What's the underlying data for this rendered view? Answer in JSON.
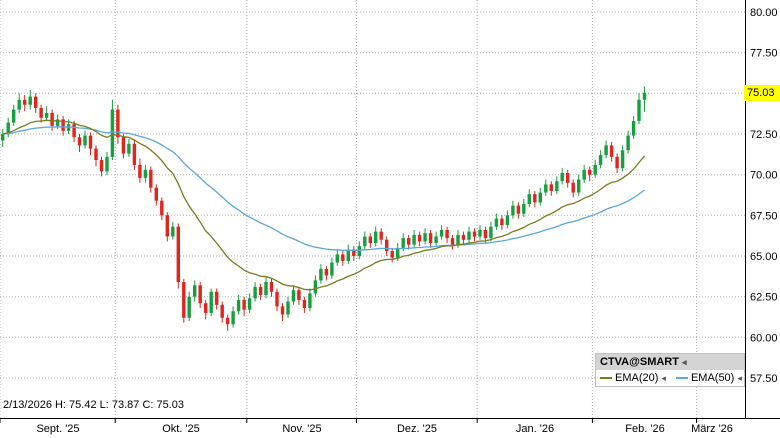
{
  "status": {
    "text": "2/13/2026 H: 75.42 L: 73.87 C: 75.03"
  },
  "legend": {
    "title": "CTVA@SMART",
    "ema20_label": "EMA(20)",
    "ema50_label": "EMA(50)",
    "collapse_icon": "◂"
  },
  "chart_data": {
    "type": "candlestick",
    "symbol": "CTVA@SMART",
    "title": "CTVA@SMART daily candlestick chart with EMA(20) and EMA(50)",
    "ylim": [
      55.0,
      80.75
    ],
    "last_price": 75.03,
    "last_price_label": "75.03",
    "y_ticks": [
      {
        "value": 80.0,
        "label": "80.00"
      },
      {
        "value": 77.5,
        "label": "77.50"
      },
      {
        "value": 75.0,
        "label": null
      },
      {
        "value": 72.5,
        "label": "72.50"
      },
      {
        "value": 70.0,
        "label": "70.00"
      },
      {
        "value": 67.5,
        "label": "67.50"
      },
      {
        "value": 65.0,
        "label": "65.00"
      },
      {
        "value": 62.5,
        "label": "62.50"
      },
      {
        "value": 60.0,
        "label": "60.00"
      },
      {
        "value": 57.5,
        "label": "57.50"
      }
    ],
    "months": [
      {
        "label": "Sept. '25",
        "start": 0
      },
      {
        "label": "Okt. '25",
        "start": 21
      },
      {
        "label": "Nov. '25",
        "start": 45
      },
      {
        "label": "Dez. '25",
        "start": 65
      },
      {
        "label": "Jan. '26",
        "start": 87
      },
      {
        "label": "Feb. '26",
        "start": 108
      },
      {
        "label": "März '26",
        "start": 127
      }
    ],
    "total_slots": 136,
    "overlays": [
      {
        "name": "EMA(20)",
        "period": 20,
        "color": "#787c1e"
      },
      {
        "name": "EMA(50)",
        "period": 50,
        "color": "#5aa8da"
      }
    ],
    "colors": {
      "up": "#14a03c",
      "down": "#e3231d",
      "grid": "#b0b0b0",
      "axis": "#000000",
      "badge_bg": "#ffff00"
    },
    "candles": [
      [
        72.1,
        72.8,
        71.7,
        72.5
      ],
      [
        72.5,
        73.5,
        72.3,
        73.2
      ],
      [
        73.2,
        74.3,
        73.0,
        74.0
      ],
      [
        74.0,
        75.0,
        73.8,
        74.6
      ],
      [
        74.6,
        74.9,
        73.9,
        74.3
      ],
      [
        74.3,
        75.2,
        74.0,
        74.8
      ],
      [
        74.8,
        75.0,
        73.8,
        74.1
      ],
      [
        74.1,
        74.3,
        73.2,
        73.5
      ],
      [
        73.5,
        74.2,
        73.3,
        73.8
      ],
      [
        73.8,
        74.0,
        72.7,
        73.0
      ],
      [
        73.0,
        73.7,
        72.8,
        73.4
      ],
      [
        73.4,
        73.6,
        72.4,
        72.7
      ],
      [
        72.7,
        73.4,
        72.5,
        73.1
      ],
      [
        73.1,
        73.3,
        72.0,
        72.3
      ],
      [
        72.3,
        72.5,
        71.4,
        71.8
      ],
      [
        71.8,
        72.7,
        71.6,
        72.4
      ],
      [
        72.4,
        72.6,
        71.2,
        71.6
      ],
      [
        71.6,
        71.8,
        70.5,
        70.9
      ],
      [
        70.9,
        71.1,
        69.9,
        70.2
      ],
      [
        70.2,
        71.4,
        70.0,
        71.1
      ],
      [
        71.1,
        74.6,
        70.9,
        74.0
      ],
      [
        74.0,
        74.3,
        71.9,
        72.3
      ],
      [
        72.3,
        72.5,
        71.0,
        71.3
      ],
      [
        71.3,
        72.2,
        71.1,
        71.9
      ],
      [
        71.9,
        72.1,
        70.3,
        70.6
      ],
      [
        70.6,
        71.0,
        69.5,
        69.8
      ],
      [
        69.8,
        70.6,
        69.5,
        70.3
      ],
      [
        70.3,
        70.5,
        68.9,
        69.2
      ],
      [
        69.2,
        69.4,
        68.1,
        68.4
      ],
      [
        68.4,
        68.6,
        67.2,
        67.5
      ],
      [
        67.5,
        67.7,
        65.9,
        66.2
      ],
      [
        66.2,
        67.1,
        66.0,
        66.8
      ],
      [
        66.8,
        67.0,
        63.0,
        63.4
      ],
      [
        63.4,
        63.6,
        60.9,
        61.2
      ],
      [
        61.2,
        62.8,
        61.0,
        62.5
      ],
      [
        62.5,
        63.5,
        62.2,
        63.2
      ],
      [
        63.2,
        63.4,
        61.8,
        62.1
      ],
      [
        62.1,
        62.3,
        61.1,
        61.5
      ],
      [
        61.5,
        63.0,
        61.3,
        62.8
      ],
      [
        62.8,
        63.0,
        61.7,
        62.0
      ],
      [
        62.0,
        62.2,
        60.9,
        61.2
      ],
      [
        61.2,
        61.4,
        60.4,
        60.8
      ],
      [
        60.8,
        61.9,
        60.6,
        61.6
      ],
      [
        61.6,
        62.6,
        61.4,
        62.3
      ],
      [
        62.3,
        62.5,
        61.3,
        61.7
      ],
      [
        61.7,
        62.7,
        61.5,
        62.4
      ],
      [
        62.4,
        63.4,
        62.2,
        63.1
      ],
      [
        63.1,
        63.3,
        62.3,
        62.6
      ],
      [
        62.6,
        63.7,
        62.4,
        63.4
      ],
      [
        63.4,
        63.6,
        62.5,
        62.8
      ],
      [
        62.8,
        63.0,
        61.6,
        61.9
      ],
      [
        61.9,
        62.1,
        61.0,
        61.4
      ],
      [
        61.4,
        62.5,
        61.2,
        62.2
      ],
      [
        62.2,
        63.2,
        62.0,
        62.9
      ],
      [
        62.9,
        63.1,
        62.0,
        62.3
      ],
      [
        62.3,
        62.5,
        61.5,
        61.8
      ],
      [
        61.8,
        63.0,
        61.6,
        62.7
      ],
      [
        62.7,
        63.8,
        62.5,
        63.5
      ],
      [
        63.5,
        64.5,
        63.3,
        64.2
      ],
      [
        64.2,
        64.4,
        63.5,
        63.8
      ],
      [
        63.8,
        64.9,
        63.6,
        64.6
      ],
      [
        64.6,
        65.4,
        64.4,
        65.1
      ],
      [
        65.1,
        65.3,
        64.4,
        64.7
      ],
      [
        64.7,
        65.7,
        64.5,
        65.4
      ],
      [
        65.4,
        65.6,
        64.7,
        65.0
      ],
      [
        65.0,
        65.9,
        64.8,
        65.6
      ],
      [
        65.6,
        66.5,
        65.4,
        66.2
      ],
      [
        66.2,
        66.4,
        65.5,
        65.8
      ],
      [
        65.8,
        66.8,
        65.6,
        66.5
      ],
      [
        66.5,
        66.7,
        65.7,
        66.0
      ],
      [
        66.0,
        66.2,
        65.0,
        65.3
      ],
      [
        65.3,
        65.5,
        64.6,
        64.9
      ],
      [
        64.9,
        65.8,
        64.7,
        65.5
      ],
      [
        65.5,
        66.4,
        65.3,
        66.1
      ],
      [
        66.1,
        66.3,
        65.4,
        65.7
      ],
      [
        65.7,
        66.6,
        65.5,
        66.3
      ],
      [
        66.3,
        66.5,
        65.6,
        65.9
      ],
      [
        65.9,
        66.7,
        65.7,
        66.4
      ],
      [
        66.4,
        66.6,
        65.5,
        65.8
      ],
      [
        65.8,
        66.5,
        65.6,
        66.2
      ],
      [
        66.2,
        66.9,
        66.0,
        66.6
      ],
      [
        66.6,
        66.8,
        65.8,
        66.1
      ],
      [
        66.1,
        66.3,
        65.4,
        65.7
      ],
      [
        65.7,
        66.6,
        65.5,
        66.3
      ],
      [
        66.3,
        66.5,
        65.7,
        66.0
      ],
      [
        66.0,
        66.8,
        65.8,
        66.5
      ],
      [
        66.5,
        66.7,
        65.9,
        66.2
      ],
      [
        66.2,
        66.9,
        66.0,
        66.6
      ],
      [
        66.6,
        66.8,
        65.8,
        66.1
      ],
      [
        66.1,
        67.1,
        65.9,
        66.8
      ],
      [
        66.8,
        67.6,
        66.6,
        67.3
      ],
      [
        67.3,
        67.5,
        66.6,
        66.9
      ],
      [
        66.9,
        67.8,
        66.7,
        67.5
      ],
      [
        67.5,
        68.4,
        67.3,
        68.1
      ],
      [
        68.1,
        68.3,
        67.3,
        67.6
      ],
      [
        67.6,
        68.5,
        67.4,
        68.2
      ],
      [
        68.2,
        69.1,
        68.0,
        68.8
      ],
      [
        68.8,
        69.0,
        68.0,
        68.3
      ],
      [
        68.3,
        69.2,
        68.1,
        68.9
      ],
      [
        68.9,
        69.7,
        68.7,
        69.4
      ],
      [
        69.4,
        69.6,
        68.7,
        69.0
      ],
      [
        69.0,
        69.9,
        68.8,
        69.6
      ],
      [
        69.6,
        70.4,
        69.4,
        70.1
      ],
      [
        70.1,
        70.3,
        69.2,
        69.5
      ],
      [
        69.5,
        69.7,
        68.6,
        68.9
      ],
      [
        68.9,
        70.0,
        68.7,
        69.7
      ],
      [
        69.7,
        70.6,
        69.5,
        70.3
      ],
      [
        70.3,
        70.5,
        69.6,
        70.0
      ],
      [
        70.0,
        70.9,
        69.8,
        70.6
      ],
      [
        70.6,
        71.5,
        70.4,
        71.2
      ],
      [
        71.2,
        72.1,
        71.0,
        71.8
      ],
      [
        71.8,
        72.0,
        70.8,
        71.1
      ],
      [
        71.1,
        71.3,
        70.1,
        70.4
      ],
      [
        70.4,
        71.8,
        70.2,
        71.5
      ],
      [
        71.5,
        72.7,
        71.3,
        72.4
      ],
      [
        72.4,
        73.6,
        72.2,
        73.3
      ],
      [
        73.3,
        75.0,
        73.1,
        74.6
      ],
      [
        74.6,
        75.42,
        73.87,
        75.03
      ]
    ]
  }
}
